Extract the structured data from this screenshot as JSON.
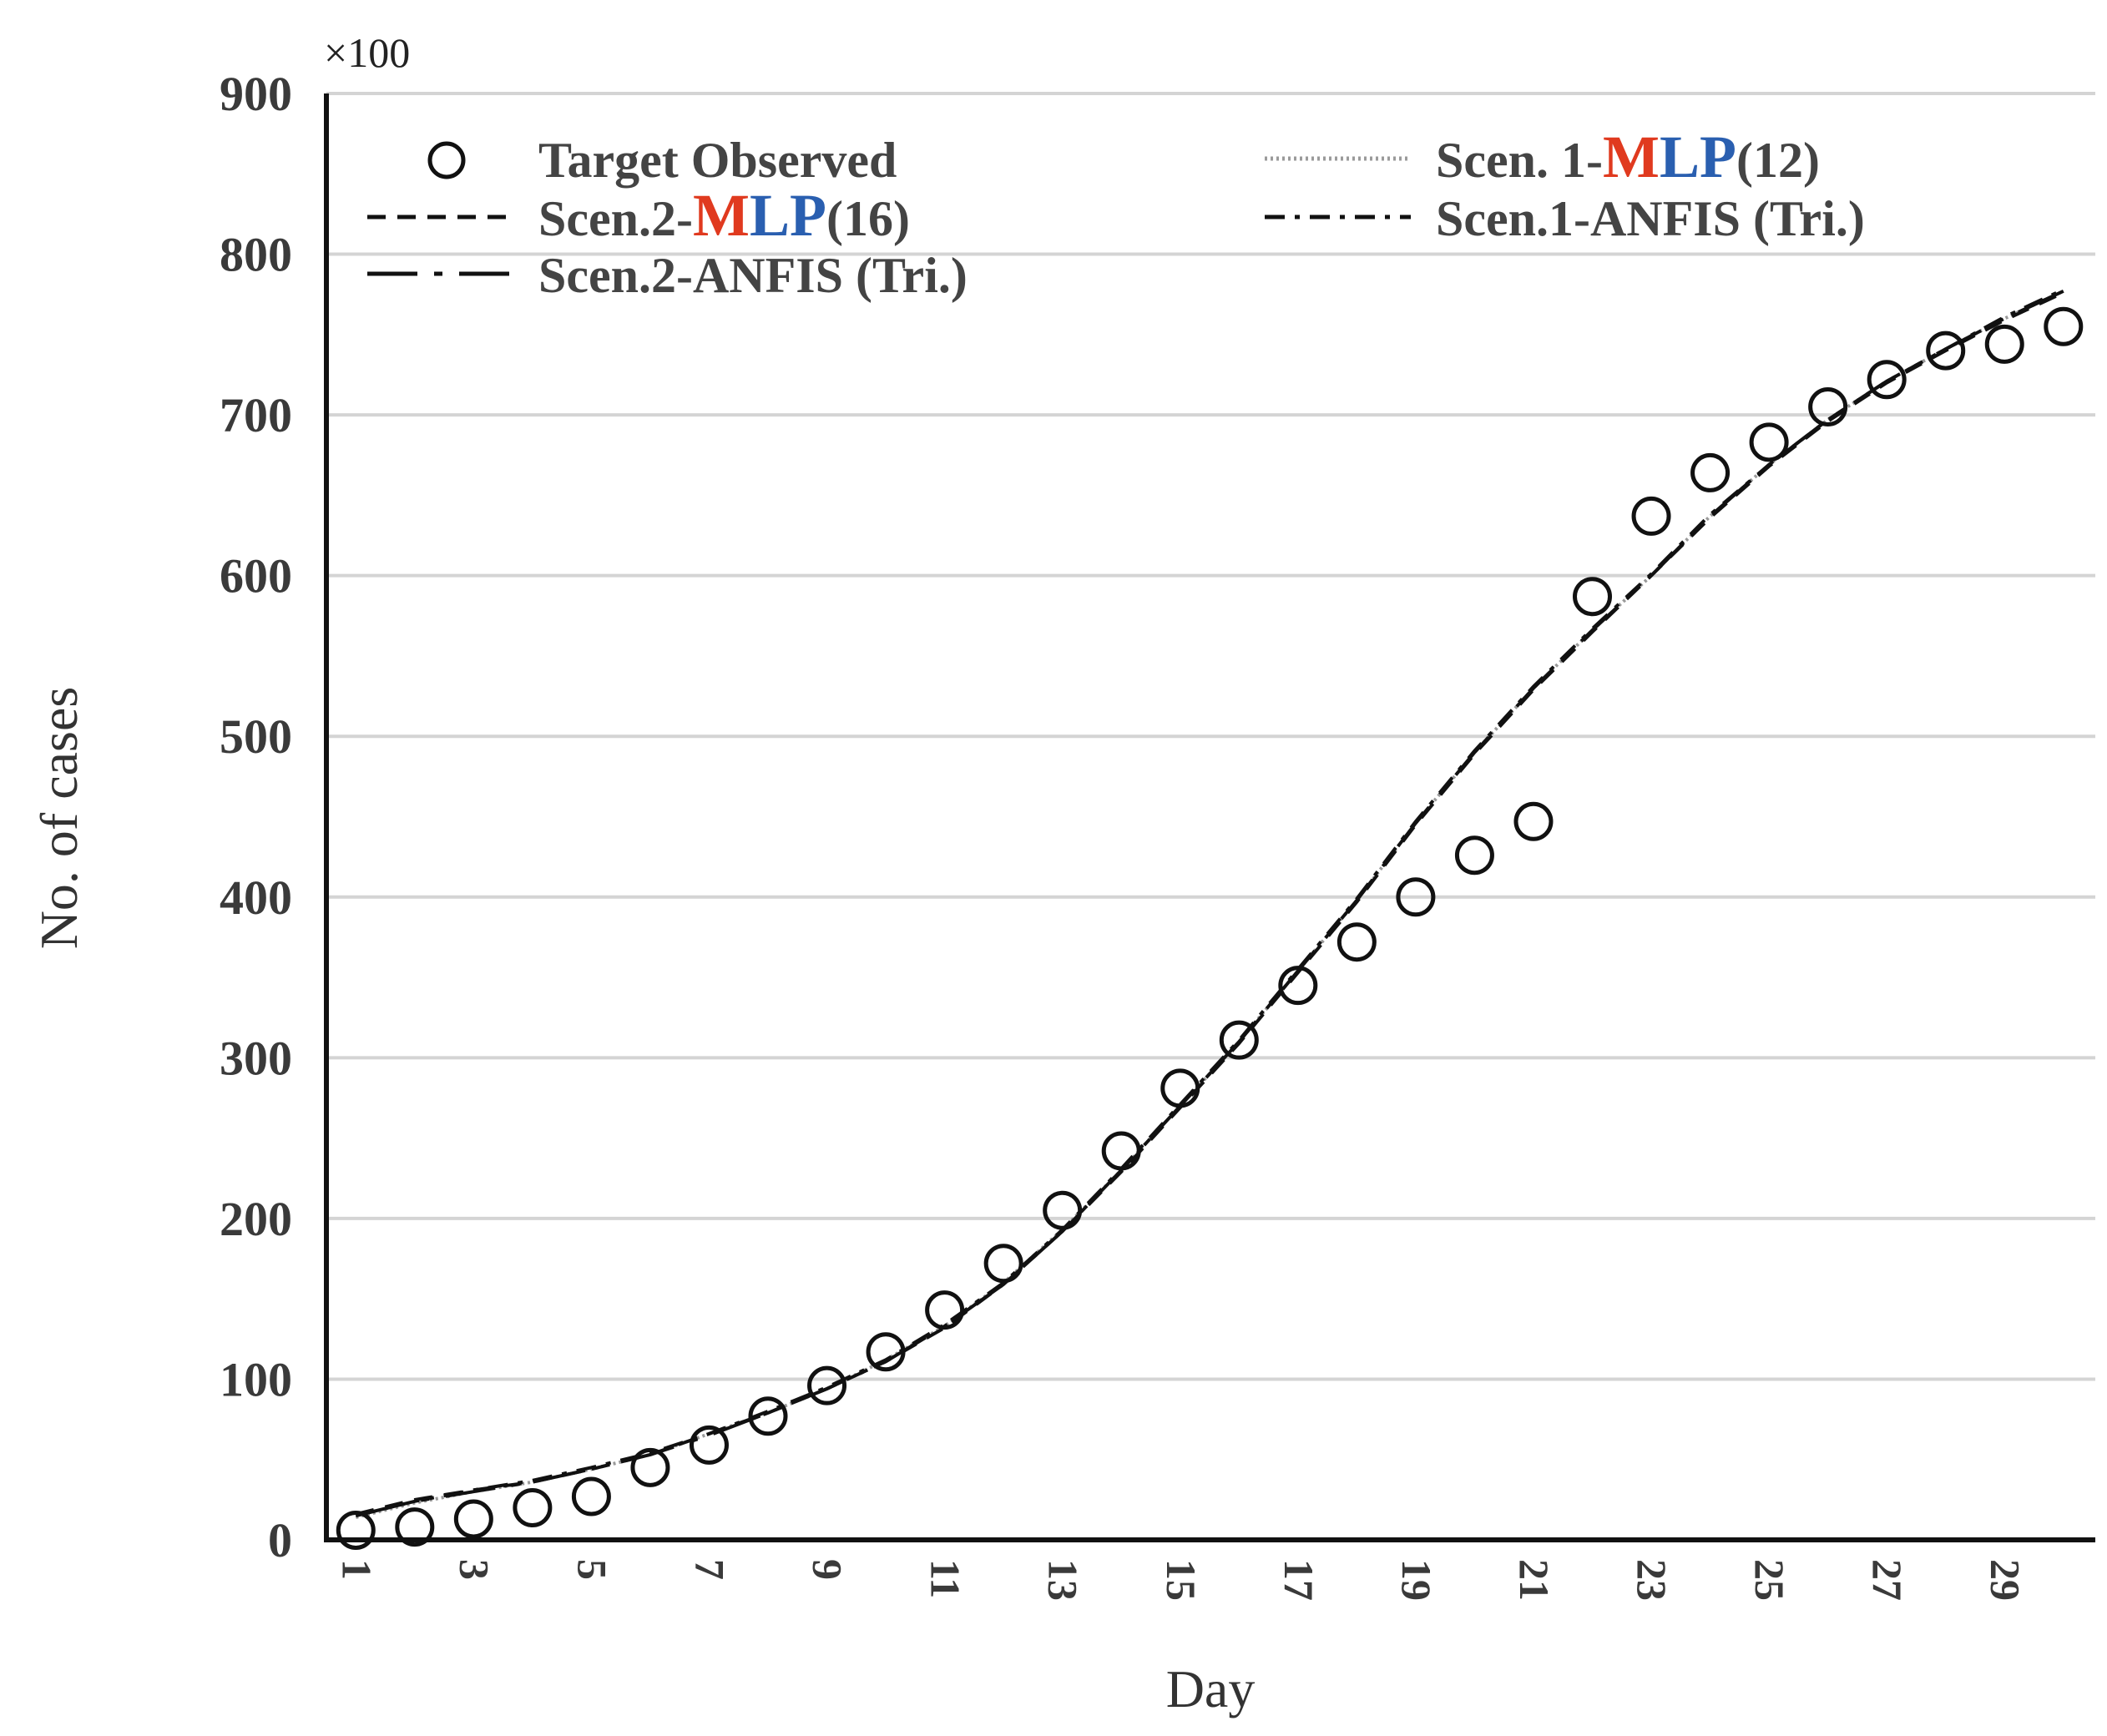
{
  "chart_data": {
    "type": "line",
    "xlabel": "Day",
    "ylabel": "No. of cases",
    "y_multiplier_label": "×100",
    "xlim": [
      0.5,
      30.4
    ],
    "ylim": [
      0,
      900
    ],
    "x_ticks": [
      1,
      3,
      5,
      7,
      9,
      11,
      13,
      15,
      17,
      19,
      21,
      23,
      25,
      27,
      29
    ],
    "y_ticks": [
      0,
      100,
      200,
      300,
      400,
      500,
      600,
      700,
      800,
      900
    ],
    "grid": "horizontal",
    "legend_position": "top-left",
    "series": [
      {
        "name": "Target Observed",
        "style": "circle-markers",
        "x": [
          1,
          2,
          3,
          4,
          5,
          6,
          7,
          8,
          9,
          10,
          11,
          12,
          13,
          14,
          15,
          16,
          17,
          18,
          19,
          20,
          21,
          22,
          23,
          24,
          25,
          26,
          27,
          28,
          29,
          30
        ],
        "y": [
          6,
          8,
          13,
          20,
          27,
          45,
          59,
          77,
          96,
          117,
          143,
          172,
          205,
          242,
          281,
          311,
          345,
          372,
          400,
          426,
          447,
          587,
          637,
          664,
          683,
          705,
          722,
          740,
          744,
          755
        ]
      },
      {
        "name": "Scen. 1-MLP(12)",
        "style": "dotted",
        "x": [
          1,
          2,
          3,
          4,
          5,
          6,
          7,
          8,
          9,
          10,
          11,
          12,
          13,
          14,
          15,
          16,
          17,
          18,
          19,
          20,
          21,
          22,
          23,
          24,
          25,
          26,
          27,
          28,
          29,
          30
        ],
        "y": [
          14,
          23,
          30,
          36,
          44,
          53,
          66,
          79,
          94,
          112,
          133,
          160,
          193,
          230,
          270,
          310,
          354,
          398,
          446,
          490,
          530,
          566,
          600,
          637,
          669,
          697,
          721,
          741,
          760,
          777
        ]
      },
      {
        "name": "Scen.2-MLP(16)",
        "style": "dashed",
        "x": [
          1,
          2,
          3,
          4,
          5,
          6,
          7,
          8,
          9,
          10,
          11,
          12,
          13,
          14,
          15,
          16,
          17,
          18,
          19,
          20,
          21,
          22,
          23,
          24,
          25,
          26,
          27,
          28,
          29,
          30
        ],
        "y": [
          16,
          25,
          31,
          36,
          44,
          53,
          66,
          79,
          94,
          111,
          132,
          159,
          192,
          229,
          269,
          309,
          353,
          397,
          445,
          489,
          529,
          565,
          600,
          636,
          668,
          696,
          720,
          740,
          759,
          776
        ]
      },
      {
        "name": "Scen.1-ANFIS (Tri.)",
        "style": "dash-dot",
        "x": [
          1,
          2,
          3,
          4,
          5,
          6,
          7,
          8,
          9,
          10,
          11,
          12,
          13,
          14,
          15,
          16,
          17,
          18,
          19,
          20,
          21,
          22,
          23,
          24,
          25,
          26,
          27,
          28,
          29,
          30
        ],
        "y": [
          15,
          24,
          31,
          37,
          45,
          54,
          66,
          80,
          95,
          112,
          134,
          160,
          193,
          231,
          271,
          311,
          355,
          399,
          447,
          491,
          531,
          567,
          601,
          638,
          669,
          697,
          721,
          741,
          761,
          778
        ]
      },
      {
        "name": "Scen.2-ANFIS (Tri.)",
        "style": "long-dash-dot",
        "x": [
          1,
          2,
          3,
          4,
          5,
          6,
          7,
          8,
          9,
          10,
          11,
          12,
          13,
          14,
          15,
          16,
          17,
          18,
          19,
          20,
          21,
          22,
          23,
          24,
          25,
          26,
          27,
          28,
          29,
          30
        ],
        "y": [
          15,
          24,
          30,
          36,
          44,
          53,
          65,
          79,
          94,
          111,
          133,
          159,
          192,
          230,
          270,
          310,
          354,
          398,
          446,
          490,
          530,
          566,
          600,
          637,
          669,
          697,
          721,
          741,
          760,
          777
        ]
      }
    ]
  },
  "legend": {
    "observed": "Target Observed",
    "s1mlp_prefix": "Scen. 1-",
    "s1mlp_em": "MLP",
    "s1mlp_suffix": "(12)",
    "s2mlp_prefix": "Scen.2-",
    "s2mlp_em": "MLP",
    "s2mlp_suffix": "(16)",
    "s1anfis": "Scen.1-ANFIS (Tri.)",
    "s2anfis": "Scen.2-ANFIS (Tri.)"
  },
  "colors": {
    "text": "#3a3a3a",
    "grid": "#d4d4d4",
    "axis": "#111111",
    "mlp_em_m": "#e03a1f",
    "mlp_em_lp": "#2a5fb0",
    "series_line": "#111111"
  }
}
